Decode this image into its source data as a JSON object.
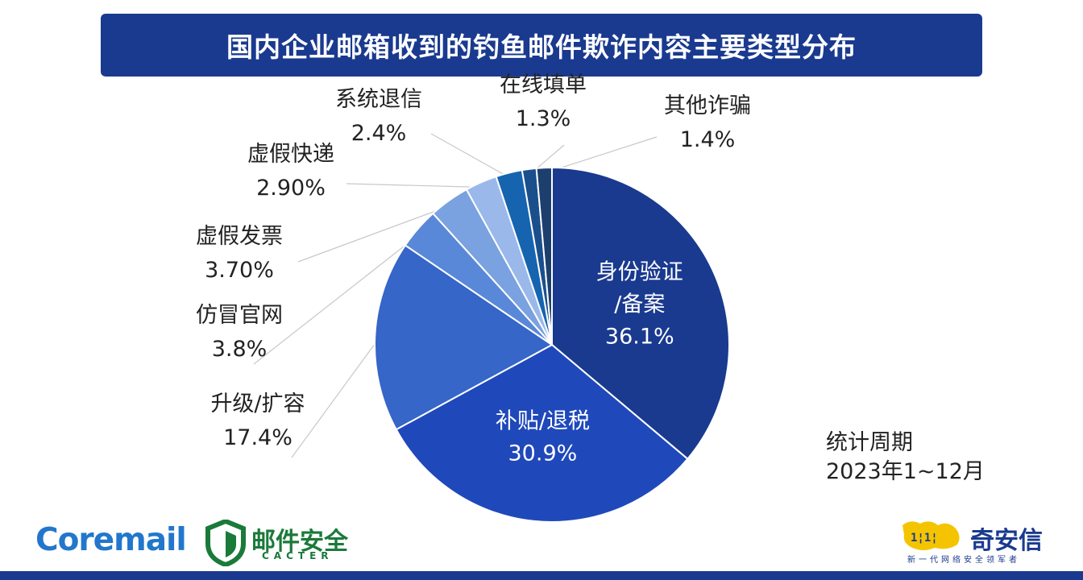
{
  "chart_data": {
    "type": "pie",
    "title": "国内企业邮箱收到的钓鱼邮件欺诈内容主要类型分布",
    "slices": [
      {
        "label": "身份验证/备案",
        "label_lines": [
          "身份验证",
          "/备案"
        ],
        "value": 36.1,
        "value_label": "36.1%",
        "color": "#1a3a8f"
      },
      {
        "label": "补贴/退税",
        "label_lines": [
          "补贴/退税"
        ],
        "value": 30.9,
        "value_label": "30.9%",
        "color": "#1f49bb"
      },
      {
        "label": "升级/扩容",
        "label_lines": [
          "升级/扩容"
        ],
        "value": 17.4,
        "value_label": "17.4%",
        "color": "#3566c8"
      },
      {
        "label": "仿冒官网",
        "label_lines": [
          "仿冒官网"
        ],
        "value": 3.8,
        "value_label": "3.8%",
        "color": "#5a88d8"
      },
      {
        "label": "虚假发票",
        "label_lines": [
          "虚假发票"
        ],
        "value": 3.7,
        "value_label": "3.70%",
        "color": "#7aa1e0"
      },
      {
        "label": "虚假快递",
        "label_lines": [
          "虚假快递"
        ],
        "value": 2.9,
        "value_label": "2.90%",
        "color": "#9ab8ea"
      },
      {
        "label": "系统退信",
        "label_lines": [
          "系统退信"
        ],
        "value": 2.4,
        "value_label": "2.4%",
        "color": "#1664b0"
      },
      {
        "label": "在线填单",
        "label_lines": [
          "在线填单"
        ],
        "value": 1.3,
        "value_label": "1.3%",
        "color": "#1a4f8c"
      },
      {
        "label": "其他诈骗",
        "label_lines": [
          "其他诈骗"
        ],
        "value": 1.4,
        "value_label": "1.4%",
        "color": "#1c3f6e"
      }
    ],
    "start": "12 o'clock",
    "direction": "clockwise",
    "legend": "none"
  },
  "period": {
    "label": "统计周期",
    "range": "2023年1~12月"
  },
  "logos": {
    "coremail": "Coremail",
    "cacter_name": "邮件安全",
    "cacter_sub": "CACTER",
    "qianxin_name": "奇安信",
    "qianxin_slogan": "新一代网络安全领军者"
  },
  "colors": {
    "banner": "#1a3a8f",
    "coremail": "#2277cc",
    "cacter": "#1a7a3a",
    "qianxin_mark": "#f5c400"
  }
}
